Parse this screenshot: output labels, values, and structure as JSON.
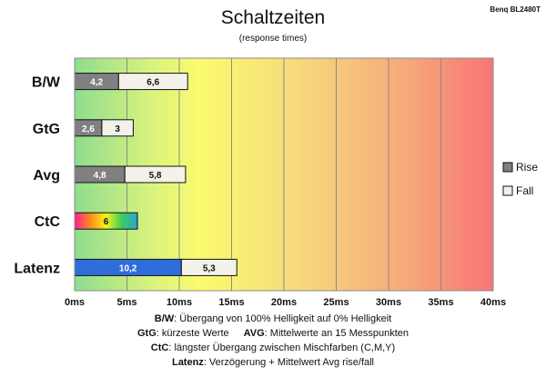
{
  "chart_data": {
    "type": "bar",
    "orientation": "horizontal",
    "stacked": true,
    "title": "Schaltzeiten",
    "subtitle": "(response times)",
    "corner_label": "Benq BL2480T",
    "categories": [
      "B/W",
      "GtG",
      "Avg",
      "CtC",
      "Latenz"
    ],
    "series": [
      {
        "name": "Rise",
        "values": [
          4.2,
          2.6,
          4.8,
          6,
          10.2
        ],
        "color": "#808080"
      },
      {
        "name": "Fall",
        "values": [
          6.6,
          3,
          5.8,
          null,
          5.3
        ],
        "color": "#f2f2ea"
      }
    ],
    "special_colors": {
      "CtC": "rainbow-gradient",
      "Latenz": "#2f6ddb"
    },
    "x_ticks": [
      "0ms",
      "5ms",
      "10ms",
      "15ms",
      "20ms",
      "25ms",
      "30ms",
      "35ms",
      "40ms"
    ],
    "xlim": [
      0,
      40
    ],
    "x_unit": "ms",
    "grid": true,
    "background": "green-yellow-red gradient",
    "legend_position": "right"
  },
  "notes": {
    "line1_label": "B/W",
    "line1_text": ": Übergang von 100% Helligkeit auf 0% Helligkeit",
    "line2_label_a": "GtG",
    "line2_text_a": ": kürzeste Werte",
    "line2_label_b": "AVG",
    "line2_text_b": ": Mittelwerte an 15 Messpunkten",
    "line3_label": "CtC",
    "line3_text": ": längster Übergang zwischen Mischfarben (C,M,Y)",
    "line4_label": "Latenz",
    "line4_text": ": Verzögerung + Mittelwert Avg rise/fall"
  }
}
